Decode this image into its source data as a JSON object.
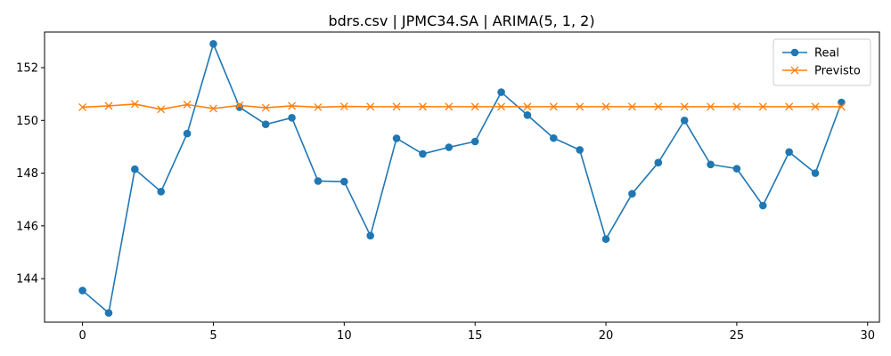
{
  "chart_data": {
    "type": "line",
    "title": "bdrs.csv | JPMC34.SA | ARIMA(5, 1, 2)",
    "xlabel": "",
    "ylabel": "",
    "x": [
      0,
      1,
      2,
      3,
      4,
      5,
      6,
      7,
      8,
      9,
      10,
      11,
      12,
      13,
      14,
      15,
      16,
      17,
      18,
      19,
      20,
      21,
      22,
      23,
      24,
      25,
      26,
      27,
      28,
      29
    ],
    "xlim": [
      -1.45,
      30.45
    ],
    "ylim": [
      142.35,
      153.35
    ],
    "x_ticks": [
      0,
      5,
      10,
      15,
      20,
      25,
      30
    ],
    "y_ticks": [
      144,
      146,
      148,
      150,
      152
    ],
    "grid": false,
    "legend_position": "top-right",
    "series": [
      {
        "name": "Real",
        "color": "#1f77b4",
        "marker": "circle",
        "values": [
          143.55,
          142.7,
          148.15,
          147.3,
          149.5,
          152.9,
          150.5,
          149.85,
          150.1,
          147.7,
          147.68,
          145.63,
          149.32,
          148.73,
          148.98,
          149.2,
          151.07,
          150.2,
          149.33,
          148.88,
          145.5,
          147.22,
          148.4,
          150.0,
          148.33,
          148.17,
          146.77,
          148.8,
          148.0,
          150.68
        ]
      },
      {
        "name": "Previsto",
        "color": "#ff7f0e",
        "marker": "x",
        "values": [
          150.5,
          150.55,
          150.62,
          150.42,
          150.6,
          150.45,
          150.57,
          150.48,
          150.55,
          150.5,
          150.53,
          150.52,
          150.52,
          150.52,
          150.52,
          150.52,
          150.52,
          150.52,
          150.52,
          150.52,
          150.52,
          150.52,
          150.52,
          150.52,
          150.52,
          150.52,
          150.52,
          150.52,
          150.52,
          150.52
        ]
      }
    ]
  }
}
